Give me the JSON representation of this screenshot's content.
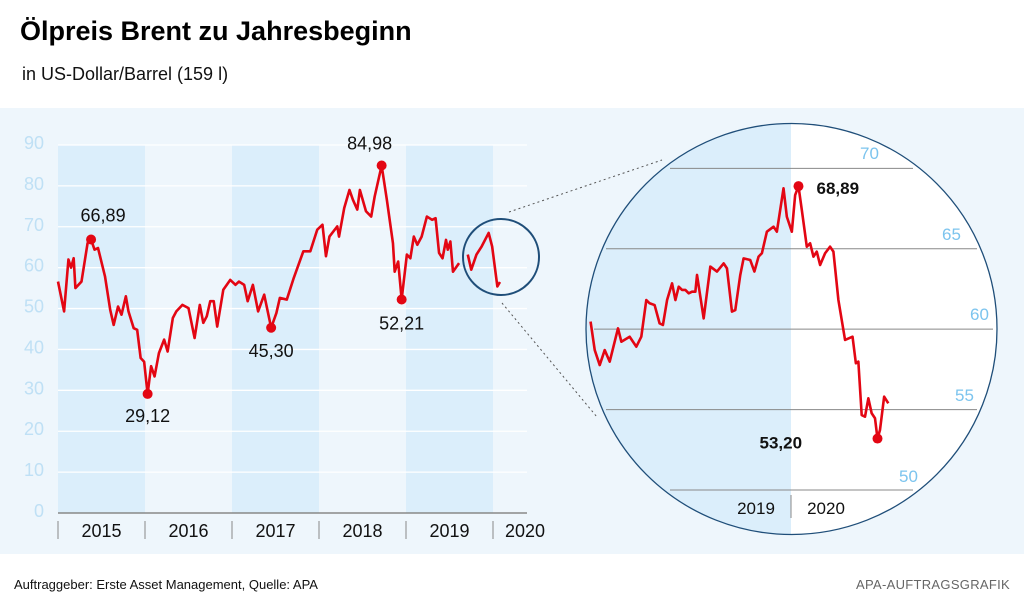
{
  "title": "Ölpreis Brent zu Jahresbeginn",
  "subtitle": "in US-Dollar/Barrel (159 l)",
  "footer": "Auftraggeber: Erste Asset Management, Quelle: APA",
  "credit": "APA-AUFTRAGSGRAFIK",
  "colors": {
    "line": "#e30613",
    "shade": "#dbeefb",
    "panel": "#eef6fc",
    "tick_label": "#bfe0f5",
    "inset_tick": "#7cc4ee",
    "circle": "#1f4e79"
  },
  "chart_data": [
    {
      "type": "line",
      "ylim": [
        0,
        90
      ],
      "yticks": [
        0,
        10,
        20,
        30,
        40,
        50,
        60,
        70,
        80,
        90
      ],
      "xlim": [
        2015,
        2020.4
      ],
      "xticks": [
        "2015",
        "2016",
        "2017",
        "2018",
        "2019",
        "2020"
      ],
      "grid": true,
      "series": [
        {
          "points": [
            [
              2015.0,
              56.6
            ],
            [
              2015.07,
              49.3
            ],
            [
              2015.12,
              62
            ],
            [
              2015.15,
              60
            ],
            [
              2015.18,
              62.3
            ],
            [
              2015.2,
              55
            ],
            [
              2015.27,
              56.6
            ],
            [
              2015.34,
              66
            ],
            [
              2015.38,
              66.89
            ],
            [
              2015.42,
              64.4
            ],
            [
              2015.46,
              64.8
            ],
            [
              2015.54,
              57.9
            ],
            [
              2015.6,
              49.7
            ],
            [
              2015.64,
              46
            ],
            [
              2015.69,
              50.5
            ],
            [
              2015.73,
              48.5
            ],
            [
              2015.78,
              53
            ],
            [
              2015.81,
              49.3
            ],
            [
              2015.87,
              45.2
            ],
            [
              2015.91,
              44.8
            ],
            [
              2015.95,
              37.9
            ],
            [
              2015.99,
              37
            ],
            [
              2016.03,
              29.12
            ],
            [
              2016.07,
              35.9
            ],
            [
              2016.11,
              33.4
            ],
            [
              2016.16,
              39.1
            ],
            [
              2016.22,
              42.4
            ],
            [
              2016.26,
              39.5
            ],
            [
              2016.32,
              47.7
            ],
            [
              2016.36,
              49.3
            ],
            [
              2016.43,
              50.9
            ],
            [
              2016.5,
              50.1
            ],
            [
              2016.57,
              42.8
            ],
            [
              2016.63,
              50.9
            ],
            [
              2016.67,
              46.5
            ],
            [
              2016.71,
              48.1
            ],
            [
              2016.75,
              51.8
            ],
            [
              2016.79,
              51.8
            ],
            [
              2016.83,
              45.6
            ],
            [
              2016.9,
              54.6
            ],
            [
              2016.98,
              57
            ],
            [
              2017.04,
              55.8
            ],
            [
              2017.08,
              56.6
            ],
            [
              2017.14,
              55.8
            ],
            [
              2017.18,
              51.8
            ],
            [
              2017.24,
              55.8
            ],
            [
              2017.3,
              49.3
            ],
            [
              2017.37,
              53.4
            ],
            [
              2017.45,
              45.3
            ],
            [
              2017.51,
              48.9
            ],
            [
              2017.55,
              52.6
            ],
            [
              2017.63,
              52.2
            ],
            [
              2017.71,
              57.5
            ],
            [
              2017.82,
              64
            ],
            [
              2017.9,
              64
            ],
            [
              2017.98,
              69.3
            ],
            [
              2018.04,
              70.5
            ],
            [
              2018.08,
              62.8
            ],
            [
              2018.12,
              67.6
            ],
            [
              2018.21,
              70.1
            ],
            [
              2018.23,
              67.6
            ],
            [
              2018.29,
              74.6
            ],
            [
              2018.35,
              79
            ],
            [
              2018.39,
              76.6
            ],
            [
              2018.44,
              74.2
            ],
            [
              2018.47,
              79
            ],
            [
              2018.54,
              73.8
            ],
            [
              2018.6,
              72.5
            ],
            [
              2018.64,
              77.4
            ],
            [
              2018.72,
              84.98
            ],
            [
              2018.78,
              76.6
            ],
            [
              2018.85,
              66
            ],
            [
              2018.87,
              59
            ],
            [
              2018.91,
              61.5
            ],
            [
              2018.95,
              52.21
            ],
            [
              2019.01,
              63.2
            ],
            [
              2019.05,
              62.3
            ],
            [
              2019.09,
              67.6
            ],
            [
              2019.13,
              65.6
            ],
            [
              2019.18,
              67.6
            ],
            [
              2019.24,
              72.5
            ],
            [
              2019.3,
              71.7
            ],
            [
              2019.34,
              72.1
            ],
            [
              2019.38,
              63.6
            ],
            [
              2019.42,
              62.3
            ],
            [
              2019.46,
              66.8
            ],
            [
              2019.48,
              64.4
            ],
            [
              2019.51,
              66.4
            ],
            [
              2019.54,
              59
            ],
            [
              2019.61,
              61.1
            ],
            [
              2019.71,
              63.2
            ],
            [
              2019.75,
              59.5
            ],
            [
              2019.81,
              63.2
            ],
            [
              2019.87,
              65.2
            ],
            [
              2019.95,
              68.5
            ],
            [
              2019.99,
              65.2
            ],
            [
              2020.05,
              55.4
            ],
            [
              2020.08,
              56.5
            ]
          ]
        }
      ],
      "annotations": [
        {
          "x": 2015.38,
          "y": 66.89,
          "label": "66,89"
        },
        {
          "x": 2016.03,
          "y": 29.12,
          "label": "29,12"
        },
        {
          "x": 2017.45,
          "y": 45.3,
          "label": "45,30"
        },
        {
          "x": 2018.72,
          "y": 84.98,
          "label": "84,98"
        },
        {
          "x": 2018.95,
          "y": 52.21,
          "label": "52,21"
        }
      ]
    },
    {
      "type": "line",
      "ylim": [
        50,
        70
      ],
      "yticks": [
        50,
        55,
        60,
        65,
        70
      ],
      "xticks": [
        "2019",
        "2020"
      ],
      "grid": true,
      "series": [
        {
          "points": [
            [
              2019.759,
              60.47
            ],
            [
              2019.764,
              58.7
            ],
            [
              2019.77,
              57.77
            ],
            [
              2019.776,
              58.7
            ],
            [
              2019.782,
              57.98
            ],
            [
              2019.792,
              60.05
            ],
            [
              2019.796,
              59.22
            ],
            [
              2019.806,
              59.53
            ],
            [
              2019.814,
              58.91
            ],
            [
              2019.82,
              59.53
            ],
            [
              2019.826,
              61.81
            ],
            [
              2019.83,
              61.61
            ],
            [
              2019.836,
              61.5
            ],
            [
              2019.842,
              60.36
            ],
            [
              2019.846,
              60.26
            ],
            [
              2019.851,
              61.81
            ],
            [
              2019.857,
              62.85
            ],
            [
              2019.861,
              61.81
            ],
            [
              2019.865,
              62.64
            ],
            [
              2019.869,
              62.44
            ],
            [
              2019.873,
              62.44
            ],
            [
              2019.877,
              62.23
            ],
            [
              2019.881,
              62.33
            ],
            [
              2019.885,
              62.33
            ],
            [
              2019.887,
              63.37
            ],
            [
              2019.891,
              62.02
            ],
            [
              2019.895,
              60.67
            ],
            [
              2019.903,
              63.89
            ],
            [
              2019.911,
              63.58
            ],
            [
              2019.919,
              64.09
            ],
            [
              2019.923,
              63.78
            ],
            [
              2019.929,
              61.09
            ],
            [
              2019.933,
              61.19
            ],
            [
              2019.939,
              63.37
            ],
            [
              2019.943,
              64.4
            ],
            [
              2019.951,
              64.3
            ],
            [
              2019.956,
              63.58
            ],
            [
              2019.961,
              64.51
            ],
            [
              2019.965,
              64.72
            ],
            [
              2019.971,
              66.06
            ],
            [
              2019.979,
              66.37
            ],
            [
              2019.983,
              66.06
            ],
            [
              2019.991,
              68.76
            ],
            [
              2019.995,
              66.99
            ],
            [
              2020.001,
              66.06
            ],
            [
              2020.005,
              68.34
            ],
            [
              2020.009,
              68.89
            ],
            [
              2020.013,
              67.41
            ],
            [
              2020.019,
              65.13
            ],
            [
              2020.023,
              65.34
            ],
            [
              2020.027,
              64.51
            ],
            [
              2020.031,
              64.82
            ],
            [
              2020.035,
              63.99
            ],
            [
              2020.041,
              64.72
            ],
            [
              2020.047,
              65.13
            ],
            [
              2020.051,
              64.82
            ],
            [
              2020.057,
              61.81
            ],
            [
              2020.065,
              59.33
            ],
            [
              2020.074,
              59.53
            ],
            [
              2020.078,
              57.88
            ],
            [
              2020.081,
              57.98
            ],
            [
              2020.085,
              54.66
            ],
            [
              2020.089,
              54.56
            ],
            [
              2020.093,
              55.7
            ],
            [
              2020.097,
              54.77
            ],
            [
              2020.101,
              54.46
            ],
            [
              2020.104,
              53.2
            ],
            [
              2020.107,
              53.73
            ],
            [
              2020.112,
              55.8
            ],
            [
              2020.117,
              55.39
            ]
          ]
        }
      ],
      "annotations": [
        {
          "x": 2020.009,
          "y": 68.89,
          "label": "68,89"
        },
        {
          "x": 2020.104,
          "y": 53.2,
          "label": "53,20"
        }
      ]
    }
  ]
}
